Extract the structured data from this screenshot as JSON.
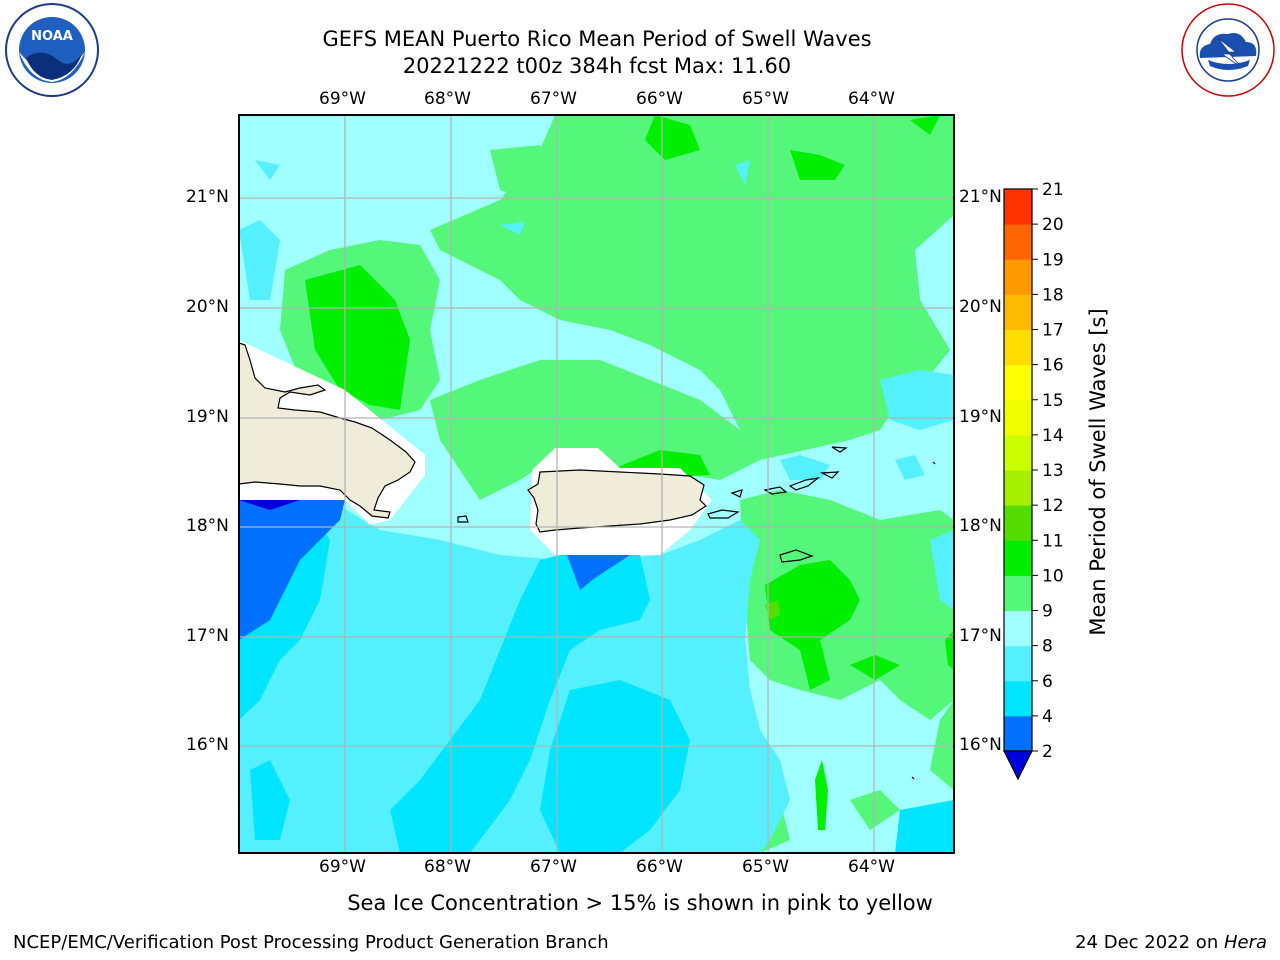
{
  "header": {
    "title_line1": "GEFS MEAN Puerto Rico Mean Period of Swell Waves",
    "title_line2": "20221222 t00z 384h fcst   Max: 11.60"
  },
  "logos": {
    "left": {
      "name": "NOAA",
      "ring_text": "NATIONAL OCEANIC AND ATMOSPHERIC ADMINISTRATION · U.S. DEPARTMENT OF COMMERCE"
    },
    "right": {
      "ring_text": "NATIONAL WEATHER SERVICE"
    }
  },
  "map": {
    "lon_labels": [
      "69°W",
      "68°W",
      "67°W",
      "66°W",
      "65°W",
      "64°W"
    ],
    "lat_labels": [
      "21°N",
      "20°N",
      "19°N",
      "18°N",
      "17°N",
      "16°N"
    ],
    "lon_range": [
      -70.0,
      -63.25
    ],
    "lat_range": [
      15.05,
      21.75
    ],
    "colors": {
      "land": "#efedda",
      "coast": "#000000",
      "grid": "#b3b3b3",
      "missing": "#ffffff"
    }
  },
  "colorbar": {
    "label": "Mean Period of Swell Waves [s]",
    "ticks": [
      "2",
      "4",
      "6",
      "8",
      "9",
      "10",
      "11",
      "12",
      "13",
      "14",
      "15",
      "16",
      "17",
      "18",
      "19",
      "20",
      "21"
    ],
    "colors": [
      "#0070ff",
      "#00e5ff",
      "#55f0ff",
      "#a0ffff",
      "#55f77a",
      "#00ee00",
      "#55dd00",
      "#a6ee00",
      "#ccff00",
      "#eeff00",
      "#ffff00",
      "#ffdd00",
      "#ffbb00",
      "#ff9900",
      "#ff6600",
      "#ff3300"
    ],
    "under_color": "#0000dd"
  },
  "footer": {
    "note": "Sea Ice Concentration > 15% is shown in pink to yellow",
    "left": "NCEP/EMC/Verification Post Processing Product Generation Branch",
    "date": "24 Dec 2022 on ",
    "machine": "Hera"
  }
}
